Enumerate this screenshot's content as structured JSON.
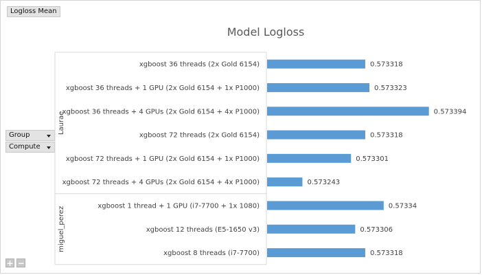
{
  "filter_button": {
    "label": "Logloss Mean"
  },
  "row_fields": [
    {
      "label": "Group"
    },
    {
      "label": "Compute"
    }
  ],
  "zoom_controls": {
    "expand": "+",
    "collapse": "−"
  },
  "chart_data": {
    "type": "bar",
    "orientation": "horizontal",
    "title": "Model Logloss",
    "xlim": [
      0.5732,
      0.5734
    ],
    "grid": false,
    "legend": "none",
    "groups": [
      {
        "name": "Laurae",
        "start": 0,
        "count": 6
      },
      {
        "name": "miguel_perez",
        "start": 6,
        "count": 3
      }
    ],
    "categories": [
      "xgboost 36 threads (2x Gold 6154)",
      "xgboost 36 threads + 1 GPU (2x Gold 6154 + 1x P1000)",
      "xgboost 36 threads + 4 GPUs (2x Gold 6154 + 4x P1000)",
      "xgboost 72 threads (2x Gold 6154)",
      "xgboost 72 threads + 1 GPU (2x Gold 6154 + 1x P1000)",
      "xgboost 72 threads + 4 GPUs (2x Gold 6154 + 4x P1000)",
      "xgboost 1 thread + 1 GPU (i7-7700 + 1x 1080)",
      "xgboost 12 threads (E5-1650 v3)",
      "xgboost 8 threads (i7-7700)"
    ],
    "values": [
      0.573318,
      0.573323,
      0.573394,
      0.573318,
      0.573301,
      0.573243,
      0.57334,
      0.573306,
      0.573318
    ],
    "value_labels": [
      "0.573318",
      "0.573323",
      "0.573394",
      "0.573318",
      "0.573301",
      "0.573243",
      "0.57334",
      "0.573306",
      "0.573318"
    ],
    "bar_color": "#5b9bd5"
  }
}
